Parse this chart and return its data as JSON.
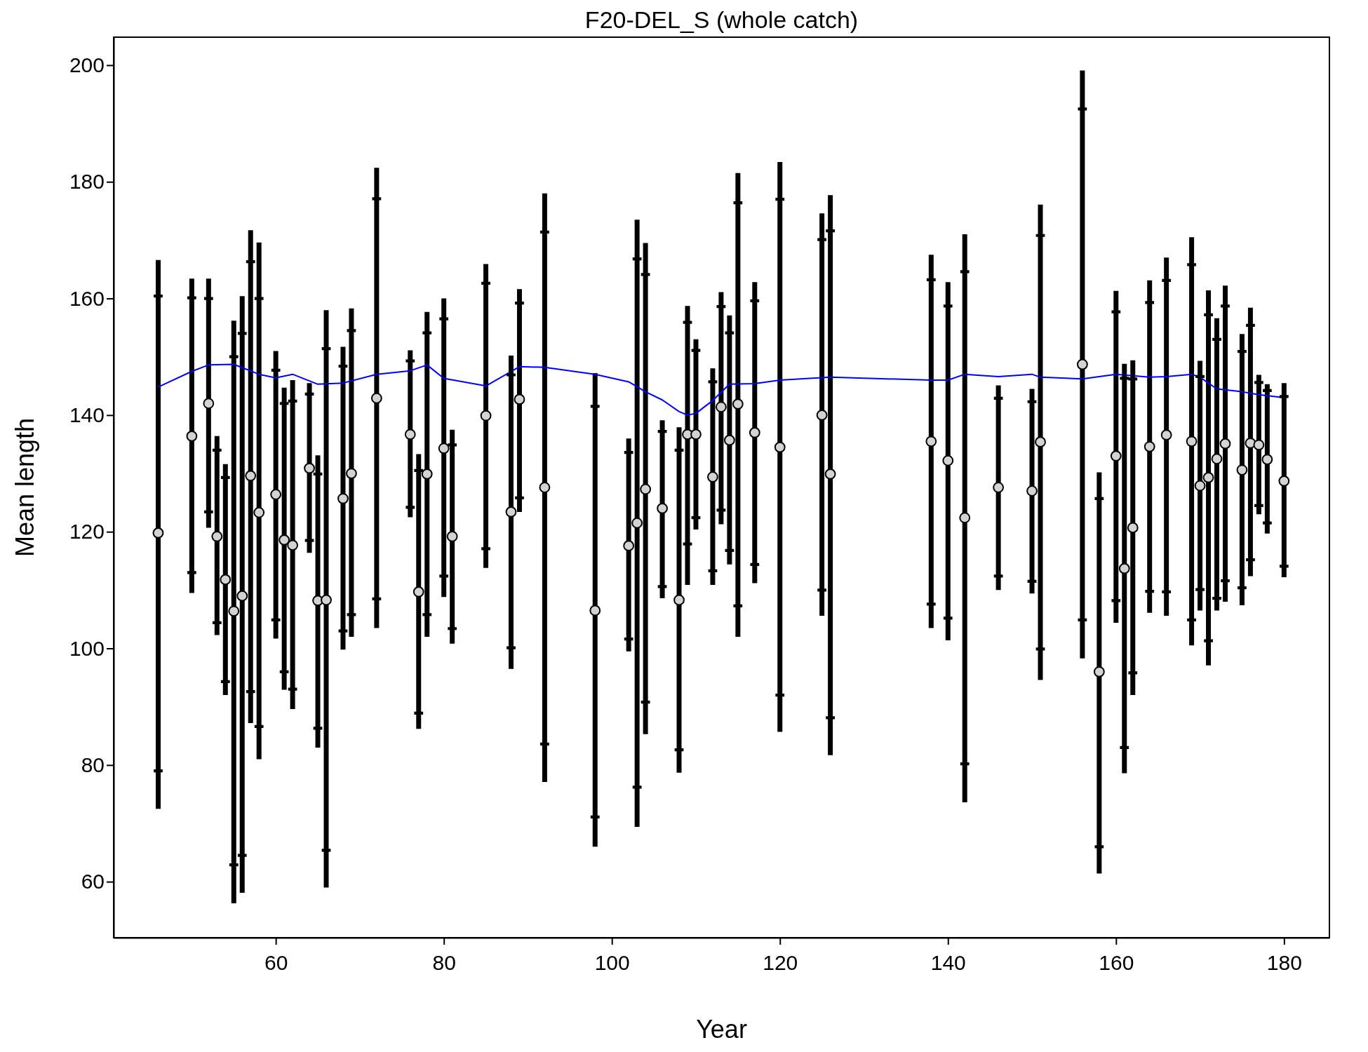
{
  "chart_data": {
    "type": "scatter",
    "title": "F20-DEL_S (whole catch)",
    "xlabel": "Year",
    "ylabel": "Mean length",
    "xlim": [
      40.7,
      185.4
    ],
    "ylim": [
      50.4,
      204.8
    ],
    "xticks": [
      60,
      80,
      100,
      120,
      140,
      160,
      180
    ],
    "yticks": [
      60,
      80,
      100,
      120,
      140,
      160,
      180,
      200
    ],
    "series": [
      {
        "marker": "circle",
        "color": "#d3d3d3",
        "x": [
          46,
          50,
          52,
          53,
          54,
          55,
          56,
          57,
          58,
          60,
          61,
          62,
          64,
          65,
          66,
          68,
          69,
          72,
          76,
          77,
          78,
          80,
          81,
          85,
          88,
          89,
          92,
          98,
          102,
          103,
          104,
          106,
          108,
          109,
          110,
          112,
          113,
          114,
          115,
          117,
          120,
          125,
          126,
          138,
          140,
          142,
          146,
          150,
          151,
          156,
          158,
          160,
          161,
          162,
          164,
          166,
          169,
          170,
          171,
          172,
          173,
          175,
          176,
          177,
          178,
          180
        ],
        "values": [
          119.8,
          136.4,
          142,
          119.2,
          111.8,
          106.4,
          109,
          129.6,
          123.3,
          126.4,
          118.6,
          117.7,
          130.9,
          108.2,
          108.3,
          125.7,
          130,
          142.9,
          136.7,
          109.7,
          129.9,
          134.3,
          119.2,
          139.9,
          123.4,
          142.7,
          127.6,
          106.5,
          117.6,
          121.5,
          127.3,
          124,
          108.3,
          136.7,
          136.7,
          129.4,
          141.4,
          135.7,
          141.9,
          137,
          134.5,
          140,
          129.9,
          135.5,
          132.2,
          122.4,
          127.6,
          127,
          135.4,
          148.7,
          96,
          133,
          113.7,
          120.7,
          134.6,
          136.6,
          135.5,
          127.9,
          129.3,
          132.5,
          135.1,
          130.6,
          135.2,
          134.9,
          132.4,
          128.7
        ],
        "errors": [
          [
            72.5,
            166.6
          ],
          [
            109.5,
            163.4
          ],
          [
            120.7,
            163.4
          ],
          [
            102.3,
            136.4
          ],
          [
            92,
            131.6
          ],
          [
            56.3,
            156.2
          ],
          [
            58.1,
            160.4
          ],
          [
            87.2,
            171.7
          ],
          [
            81,
            169.6
          ],
          [
            101.7,
            151
          ],
          [
            92.9,
            144.7
          ],
          [
            89.6,
            146
          ],
          [
            116.4,
            145.5
          ],
          [
            83,
            133.1
          ],
          [
            59,
            158
          ],
          [
            99.8,
            151.7
          ],
          [
            102,
            158.3
          ],
          [
            103.5,
            182.4
          ],
          [
            122.5,
            151.1
          ],
          [
            86.2,
            133.3
          ],
          [
            102,
            157.7
          ],
          [
            108.8,
            160
          ],
          [
            100.8,
            137.5
          ],
          [
            113.8,
            165.9
          ],
          [
            96.5,
            150.2
          ],
          [
            123.4,
            161.6
          ],
          [
            77.1,
            178
          ],
          [
            66,
            147.2
          ],
          [
            99.5,
            136
          ],
          [
            69.4,
            173.5
          ],
          [
            85.3,
            169.5
          ],
          [
            108.6,
            139.1
          ],
          [
            78.7,
            137.9
          ],
          [
            110.9,
            158.7
          ],
          [
            120.4,
            153
          ],
          [
            110.9,
            148
          ],
          [
            121.3,
            161.1
          ],
          [
            114.4,
            157.1
          ],
          [
            102,
            181.5
          ],
          [
            111.2,
            162.8
          ],
          [
            85.7,
            183.4
          ],
          [
            105.6,
            174.6
          ],
          [
            81.7,
            177.7
          ],
          [
            103.5,
            167.5
          ],
          [
            101.4,
            162.8
          ],
          [
            73.6,
            171
          ],
          [
            110,
            145.1
          ],
          [
            109.4,
            144.5
          ],
          [
            94.6,
            176.1
          ],
          [
            98.3,
            199.1
          ],
          [
            61.4,
            130.2
          ],
          [
            104.4,
            161.3
          ],
          [
            78.6,
            148.8
          ],
          [
            92,
            149.4
          ],
          [
            106.1,
            163.1
          ],
          [
            105.6,
            167
          ],
          [
            100.5,
            170.5
          ],
          [
            106.5,
            149.3
          ],
          [
            97.1,
            161.4
          ],
          [
            106.5,
            156.6
          ],
          [
            108,
            162.2
          ],
          [
            107.4,
            153.9
          ],
          [
            112.4,
            158.4
          ],
          [
            123,
            146.9
          ],
          [
            119.7,
            145.3
          ],
          [
            112.2,
            145.5
          ]
        ]
      },
      {
        "marker": "cross",
        "color": "#000000",
        "x": [
          46,
          46,
          50,
          50,
          52,
          52,
          53,
          53,
          54,
          54,
          55,
          55,
          56,
          56,
          57,
          57,
          58,
          58,
          60,
          60,
          61,
          61,
          62,
          62,
          64,
          64,
          65,
          65,
          66,
          66,
          68,
          68,
          69,
          69,
          72,
          72,
          76,
          76,
          77,
          77,
          78,
          78,
          80,
          80,
          81,
          81,
          85,
          85,
          88,
          88,
          89,
          89,
          92,
          92,
          98,
          98,
          102,
          102,
          103,
          103,
          104,
          104,
          106,
          106,
          108,
          108,
          109,
          109,
          110,
          110,
          112,
          112,
          113,
          113,
          114,
          114,
          115,
          115,
          117,
          117,
          120,
          120,
          125,
          125,
          126,
          126,
          138,
          138,
          140,
          140,
          142,
          142,
          146,
          146,
          150,
          150,
          151,
          151,
          156,
          156,
          158,
          158,
          160,
          160,
          161,
          161,
          162,
          162,
          164,
          164,
          166,
          166,
          169,
          169,
          170,
          170,
          171,
          171,
          172,
          172,
          173,
          173,
          175,
          175,
          176,
          176,
          177,
          177,
          178,
          178,
          180,
          180
        ],
        "values": [
          79,
          160.4,
          113,
          160.1,
          123.4,
          160,
          104.4,
          134,
          94.3,
          129.3,
          62.9,
          150,
          64.5,
          154,
          92.6,
          166.3,
          86.6,
          160,
          104.9,
          147.7,
          96,
          142,
          93,
          142.4,
          118.5,
          143.6,
          86.3,
          129.9,
          65.4,
          151.4,
          103,
          148.4,
          105.8,
          154.5,
          108.5,
          177.1,
          124.2,
          149.3,
          88.9,
          130.5,
          105.8,
          154.1,
          112.4,
          156.5,
          103.4,
          134.9,
          117.1,
          162.6,
          100.1,
          146.9,
          125.8,
          159.2,
          83.6,
          171.4,
          71.1,
          141.5,
          101.6,
          133.6,
          76.2,
          166.8,
          90.8,
          164.1,
          110.6,
          137.2,
          82.6,
          134,
          117.9,
          155.9,
          122.4,
          151.1,
          113.3,
          145.7,
          123.7,
          158.6,
          116.8,
          154.1,
          107.3,
          176.4,
          114.4,
          159.6,
          92,
          177,
          110,
          170.1,
          88.1,
          171.6,
          107.6,
          163.2,
          105.2,
          158.7,
          80.2,
          164.6,
          112.4,
          142.9,
          111.5,
          142.3,
          99.9,
          170.8,
          104.9,
          192.5,
          66,
          125.7,
          108.2,
          157.7,
          83,
          146.3,
          95.8,
          146.2,
          109.8,
          159.3,
          109.7,
          163.1,
          104.9,
          165.8,
          110.1,
          146.6,
          101.3,
          157.2,
          108.6,
          153,
          111.6,
          158.7,
          110.4,
          150.9,
          115.2,
          155.4,
          124.5,
          145.6,
          121.5,
          144.2,
          114.1,
          143.2
        ]
      },
      {
        "type": "line",
        "line_style": "solid",
        "color": "#0000ff",
        "x": [
          46,
          50,
          52,
          55,
          58,
          60,
          62,
          65,
          68,
          72,
          76,
          78,
          80,
          85,
          89,
          92,
          98,
          102,
          104,
          106,
          108,
          109,
          110,
          112,
          114,
          117,
          120,
          126,
          138,
          140,
          142,
          146,
          150,
          151,
          156,
          160,
          164,
          166,
          169,
          170,
          172,
          175,
          177,
          180
        ],
        "values": [
          144.8,
          147.5,
          148.6,
          148.7,
          147,
          146.4,
          147,
          145.3,
          145.5,
          147,
          147.6,
          148.6,
          146.3,
          145,
          148.3,
          148.2,
          147,
          145.7,
          144,
          142.6,
          140.6,
          140,
          140.3,
          142.5,
          145.3,
          145.4,
          146,
          146.5,
          146,
          146,
          147,
          146.6,
          147,
          146.5,
          146.2,
          147,
          146.5,
          146.6,
          147,
          146.5,
          144.5,
          144,
          143.5,
          143
        ]
      }
    ]
  }
}
